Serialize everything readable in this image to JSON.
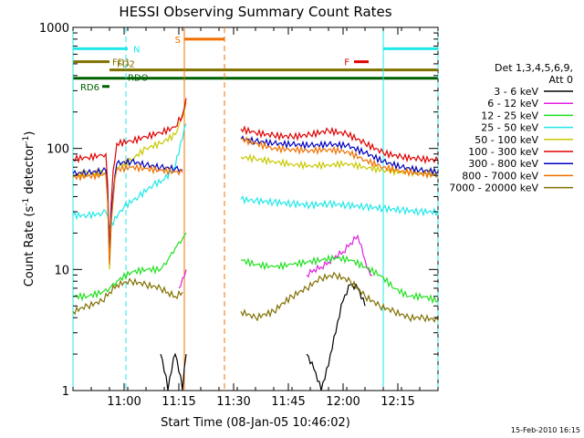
{
  "chart_data": {
    "type": "line",
    "title": "HESSI Observing Summary Count Rates",
    "xlabel": "Start Time (08-Jan-05 10:46:02)",
    "ylabel_main": "Count Rate (s",
    "ylabel_sup": "-1",
    "ylabel_tail": " detector",
    "ylabel_end": ")",
    "yscale": "log",
    "ylim": [
      1,
      1000
    ],
    "xlim_minutes": [
      0,
      100
    ],
    "x_ticks": [
      {
        "m": 14,
        "label": "11:00"
      },
      {
        "m": 29,
        "label": "11:15"
      },
      {
        "m": 44,
        "label": "11:30"
      },
      {
        "m": 59,
        "label": "11:45"
      },
      {
        "m": 74,
        "label": "12:00"
      },
      {
        "m": 89,
        "label": "12:15"
      }
    ],
    "y_ticks": [
      {
        "v": 1,
        "label": "1"
      },
      {
        "v": 10,
        "label": "10"
      },
      {
        "v": 100,
        "label": "100"
      },
      {
        "v": 1000,
        "label": "1000"
      }
    ],
    "legend_header": [
      "Det 1,3,4,5,6,9,",
      "Att 0"
    ],
    "legend": [
      {
        "label": "3 - 6 keV",
        "color": "#000000"
      },
      {
        "label": "6 - 12 keV",
        "color": "#e020e0"
      },
      {
        "label": "12 - 25 keV",
        "color": "#20e020"
      },
      {
        "label": "25 - 50 keV",
        "color": "#20e8e8"
      },
      {
        "label": "50 - 100 keV",
        "color": "#c8c800"
      },
      {
        "label": "100 - 300 keV",
        "color": "#e00000"
      },
      {
        "label": "300 - 800 keV",
        "color": "#0000c0"
      },
      {
        "label": "800 - 7000 keV",
        "color": "#f07000"
      },
      {
        "label": "7000 - 20000 keV",
        "color": "#807000"
      }
    ],
    "footer_date": "15-Feb-2010 16:15",
    "flag_bars": [
      {
        "label": "N",
        "color": "#20e8e8",
        "segments": [
          [
            0,
            15
          ],
          [
            85,
            100
          ]
        ],
        "y": 666
      },
      {
        "label": "S",
        "color": "#f07000",
        "segments": [
          [
            30.5,
            41.5
          ]
        ],
        "y": 800
      },
      {
        "label": "F",
        "color": "#e00000",
        "segments": [
          [
            77,
            81
          ]
        ],
        "y": 520
      },
      {
        "label": "FD1",
        "color": "#807000",
        "segments": [
          [
            0,
            10
          ]
        ],
        "y": 520
      },
      {
        "label": "FD2",
        "color": "#807000",
        "segments": [
          [
            10,
            100
          ]
        ],
        "y": 445
      },
      {
        "label": "RDO",
        "color": "#006000",
        "segments": [
          [
            0,
            100
          ]
        ],
        "y": 380
      },
      {
        "label": "RD6",
        "color": "#006000",
        "segments": [
          [
            8,
            10
          ]
        ],
        "y": 325
      }
    ],
    "vlines": [
      {
        "m": 0,
        "color": "#20e8e8",
        "dash": false
      },
      {
        "m": 14.5,
        "color": "#20e8e8",
        "dash": true
      },
      {
        "m": 30.5,
        "color": "#f07000",
        "dash": false
      },
      {
        "m": 41.5,
        "color": "#f07000",
        "dash": true
      },
      {
        "m": 85,
        "color": "#20e8e8",
        "dash": false
      },
      {
        "m": 100,
        "color": "#20e8e8",
        "dash": true
      }
    ],
    "series": [
      {
        "name": "3 - 6 keV",
        "color": "#000000",
        "x": [
          24,
          26,
          28,
          30,
          31,
          64,
          66,
          68,
          70,
          72,
          74,
          76,
          78,
          80
        ],
        "y": [
          2.0,
          1.0,
          2.0,
          1.0,
          2.0,
          2.0,
          1.5,
          1.0,
          1.6,
          3.0,
          5.5,
          7.5,
          7.0,
          5.0
        ]
      },
      {
        "name": "6 - 12 keV",
        "color": "#e020e0",
        "x": [
          29,
          30,
          31,
          64,
          66,
          68,
          70,
          72,
          74,
          76,
          78,
          79,
          80,
          81,
          82
        ],
        "y": [
          7.0,
          8.5,
          10.0,
          9.0,
          10.0,
          10.5,
          11.5,
          13.0,
          14.0,
          16.5,
          19.0,
          16.0,
          12.0,
          10.0,
          9.0
        ]
      },
      {
        "name": "12 - 25 keV",
        "color": "#20e020",
        "x": [
          0,
          4,
          8,
          10,
          12,
          16,
          20,
          24,
          26,
          28,
          30,
          31,
          46,
          50,
          55,
          60,
          64,
          68,
          72,
          76,
          80,
          84,
          88,
          92,
          96,
          100
        ],
        "y": [
          6.0,
          6.0,
          6.5,
          7.0,
          8.0,
          9.5,
          10.0,
          10.0,
          12.0,
          15.0,
          18.0,
          20.0,
          12.0,
          11.0,
          10.5,
          11.0,
          11.5,
          12.0,
          12.5,
          12.0,
          10.5,
          9.0,
          7.0,
          6.0,
          6.0,
          5.5
        ]
      },
      {
        "name": "25 - 50 keV",
        "color": "#20e8e8",
        "x": [
          0,
          4,
          8,
          9,
          10,
          14,
          18,
          22,
          25,
          28,
          30,
          31,
          46,
          50,
          55,
          60,
          65,
          70,
          75,
          80,
          85,
          90,
          95,
          100
        ],
        "y": [
          28,
          28,
          29,
          30,
          22,
          33,
          40,
          50,
          55,
          70,
          120,
          160,
          38,
          37,
          36,
          35,
          34,
          35,
          34,
          33,
          32,
          31,
          30,
          30
        ]
      },
      {
        "name": "50 - 100 keV",
        "color": "#c8c800",
        "x": [
          0,
          4,
          8,
          9,
          10,
          12,
          16,
          20,
          24,
          28,
          30,
          31,
          46,
          50,
          55,
          60,
          65,
          70,
          75,
          80,
          85,
          90,
          95,
          100
        ],
        "y": [
          60,
          62,
          63,
          64,
          10,
          70,
          80,
          100,
          110,
          130,
          180,
          240,
          85,
          82,
          78,
          74,
          72,
          73,
          75,
          70,
          66,
          64,
          63,
          62
        ]
      },
      {
        "name": "100 - 300 keV",
        "color": "#e00000",
        "x": [
          0,
          4,
          8,
          9,
          10,
          12,
          16,
          20,
          24,
          28,
          30,
          31,
          46,
          50,
          55,
          60,
          65,
          70,
          75,
          80,
          85,
          90,
          95,
          100
        ],
        "y": [
          82,
          84,
          88,
          90,
          14,
          110,
          115,
          125,
          135,
          150,
          190,
          260,
          145,
          135,
          128,
          125,
          130,
          140,
          132,
          110,
          92,
          85,
          82,
          80
        ]
      },
      {
        "name": "300 - 800 keV",
        "color": "#0000c0",
        "x": [
          0,
          4,
          8,
          9,
          10,
          12,
          16,
          20,
          24,
          28,
          30,
          46,
          50,
          55,
          60,
          65,
          70,
          75,
          80,
          85,
          90,
          95,
          100
        ],
        "y": [
          62,
          63,
          65,
          66,
          12,
          75,
          78,
          73,
          70,
          68,
          66,
          120,
          115,
          110,
          108,
          106,
          108,
          106,
          92,
          78,
          70,
          66,
          64
        ]
      },
      {
        "name": "800 - 7000 keV",
        "color": "#f07000",
        "x": [
          0,
          4,
          8,
          9,
          10,
          12,
          16,
          20,
          24,
          28,
          30,
          46,
          50,
          55,
          60,
          65,
          70,
          75,
          80,
          85,
          90,
          95,
          100
        ],
        "y": [
          58,
          59,
          60,
          61,
          11,
          67,
          70,
          68,
          66,
          64,
          63,
          120,
          110,
          100,
          98,
          96,
          98,
          94,
          80,
          70,
          65,
          62,
          60
        ]
      },
      {
        "name": "7000 - 20000 keV",
        "color": "#807000",
        "x": [
          0,
          4,
          8,
          10,
          12,
          16,
          20,
          24,
          26,
          28,
          30,
          46,
          50,
          55,
          60,
          64,
          68,
          72,
          76,
          80,
          84,
          88,
          92,
          96,
          100
        ],
        "y": [
          4.5,
          5.0,
          5.5,
          6.5,
          7.5,
          8.0,
          7.5,
          7.0,
          6.5,
          6.0,
          6.5,
          4.5,
          4.0,
          4.5,
          6.0,
          7.0,
          8.5,
          9.0,
          8.0,
          6.0,
          5.0,
          4.5,
          4.0,
          4.0,
          3.8
        ]
      }
    ]
  }
}
